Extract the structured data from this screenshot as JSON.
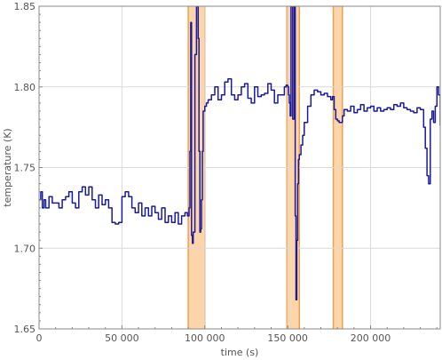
{
  "chart_data": {
    "type": "line",
    "title": "",
    "xlabel": "time (s)",
    "ylabel": "temperature (K)",
    "xlim": [
      0,
      242000
    ],
    "ylim": [
      1.65,
      1.85
    ],
    "grid": true,
    "x_ticks": [
      0,
      50000,
      100000,
      150000,
      200000
    ],
    "x_tick_labels": [
      "0",
      "50 000",
      "100 000",
      "150 000",
      "200 000"
    ],
    "y_ticks": [
      1.65,
      1.7,
      1.75,
      1.8,
      1.85
    ],
    "y_tick_labels": [
      "1.65",
      "1.70",
      "1.75",
      "1.80",
      "1.85"
    ],
    "highlight_bands": [
      {
        "x0": 90000,
        "x1": 100000
      },
      {
        "x0": 149500,
        "x1": 157000
      },
      {
        "x0": 177500,
        "x1": 183000
      }
    ],
    "colors": {
      "line": "#1a1a9c",
      "band_fill": "#fcd5aa",
      "band_edge": "#f0a14a",
      "grid": "#d9d9d9",
      "frame": "#888888"
    },
    "series": [
      {
        "x": [
          0,
          1000,
          2000,
          3000,
          4000,
          6000,
          8000,
          10000,
          12000,
          14000,
          16000,
          18000,
          20000,
          22000,
          24000,
          26000,
          28000,
          30000,
          32000,
          34000,
          36000,
          38000,
          40000,
          42000,
          44000,
          46000,
          48000,
          50000,
          52000,
          54000,
          56000,
          58000,
          60000,
          62000,
          64000,
          66000,
          68000,
          70000,
          72000,
          74000,
          76000,
          78000,
          80000,
          82000,
          84000,
          86000,
          88000,
          89500,
          90500,
          91000,
          91500,
          92000,
          92500,
          93000,
          94000,
          95000,
          96000,
          96500,
          97000,
          97500,
          98000,
          98500,
          99000,
          100000,
          101000,
          102000,
          104000,
          106000,
          108000,
          110000,
          112000,
          114000,
          116000,
          118000,
          120000,
          122000,
          124000,
          126000,
          128000,
          130000,
          132000,
          134000,
          136000,
          138000,
          140000,
          142000,
          144000,
          146000,
          148000,
          149000,
          150000,
          150500,
          151000,
          151500,
          152000,
          153000,
          154000,
          154500,
          155000,
          155500,
          156000,
          156500,
          157000,
          158000,
          159000,
          160000,
          162000,
          164000,
          166000,
          168000,
          170000,
          172000,
          174000,
          176000,
          177000,
          178000,
          179000,
          180000,
          181000,
          182000,
          183000,
          184000,
          186000,
          188000,
          190000,
          192000,
          194000,
          196000,
          198000,
          200000,
          202000,
          204000,
          206000,
          208000,
          210000,
          212000,
          214000,
          216000,
          218000,
          220000,
          222000,
          224000,
          226000,
          228000,
          230000,
          232000,
          233000,
          234000,
          235000,
          236000,
          237000,
          238000,
          239000,
          240000,
          241000,
          242000
        ],
        "y": [
          1.73,
          1.735,
          1.725,
          1.73,
          1.725,
          1.732,
          1.728,
          1.728,
          1.725,
          1.73,
          1.732,
          1.735,
          1.728,
          1.725,
          1.735,
          1.738,
          1.733,
          1.738,
          1.73,
          1.725,
          1.733,
          1.727,
          1.73,
          1.725,
          1.716,
          1.715,
          1.716,
          1.732,
          1.735,
          1.732,
          1.725,
          1.722,
          1.728,
          1.72,
          1.725,
          1.72,
          1.726,
          1.722,
          1.718,
          1.725,
          1.716,
          1.72,
          1.716,
          1.722,
          1.715,
          1.72,
          1.722,
          1.72,
          1.725,
          1.76,
          1.84,
          1.708,
          1.703,
          1.71,
          1.82,
          1.85,
          1.83,
          1.76,
          1.71,
          1.712,
          1.73,
          1.76,
          1.785,
          1.788,
          1.79,
          1.792,
          1.795,
          1.8,
          1.792,
          1.795,
          1.803,
          1.805,
          1.795,
          1.792,
          1.795,
          1.8,
          1.802,
          1.793,
          1.79,
          1.8,
          1.794,
          1.795,
          1.796,
          1.802,
          1.798,
          1.79,
          1.795,
          1.795,
          1.8,
          1.801,
          1.8,
          1.795,
          1.79,
          1.782,
          1.85,
          1.78,
          1.85,
          1.72,
          1.668,
          1.705,
          1.74,
          1.755,
          1.758,
          1.764,
          1.77,
          1.778,
          1.788,
          1.795,
          1.798,
          1.797,
          1.795,
          1.796,
          1.794,
          1.792,
          1.794,
          1.786,
          1.78,
          1.779,
          1.778,
          1.778,
          1.782,
          1.786,
          1.785,
          1.788,
          1.784,
          1.786,
          1.789,
          1.785,
          1.787,
          1.788,
          1.785,
          1.787,
          1.785,
          1.786,
          1.787,
          1.786,
          1.789,
          1.788,
          1.79,
          1.787,
          1.786,
          1.785,
          1.784,
          1.787,
          1.786,
          1.775,
          1.762,
          1.745,
          1.74,
          1.78,
          1.785,
          1.778,
          1.788,
          1.8,
          1.795,
          1.776
        ]
      }
    ]
  }
}
